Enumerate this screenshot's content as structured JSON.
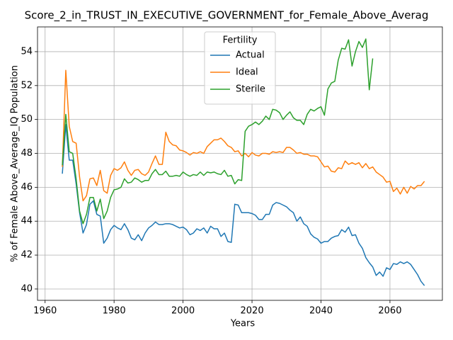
{
  "chart_data": {
    "type": "line",
    "title": "Score_2_in_TRUST_IN_EXECUTIVE_GOVERNMENT_for_Female_Above_Averag",
    "x_label": "Years",
    "y_label": "% of Female Above_Average_IQ Population",
    "legend_title": "Fertility",
    "legend_position": "upper center",
    "grid": true,
    "xlim": [
      1957.8,
      2075.2
    ],
    "ylim": [
      39.33,
      55.46
    ],
    "xticks": [
      1960,
      1980,
      2000,
      2020,
      2040,
      2060
    ],
    "yticks": [
      40,
      42,
      44,
      46,
      48,
      50,
      52,
      54
    ],
    "x": [
      1965,
      1966,
      1967,
      1968,
      1969,
      1970,
      1971,
      1972,
      1973,
      1974,
      1975,
      1976,
      1977,
      1978,
      1979,
      1980,
      1981,
      1982,
      1983,
      1984,
      1985,
      1986,
      1987,
      1988,
      1989,
      1990,
      1991,
      1992,
      1993,
      1994,
      1995,
      1996,
      1997,
      1998,
      1999,
      2000,
      2001,
      2002,
      2003,
      2004,
      2005,
      2006,
      2007,
      2008,
      2009,
      2010,
      2011,
      2012,
      2013,
      2014,
      2015,
      2016,
      2017,
      2018,
      2019,
      2020,
      2021,
      2022,
      2023,
      2024,
      2025,
      2026,
      2027,
      2028,
      2029,
      2030,
      2031,
      2032,
      2033,
      2034,
      2035,
      2036,
      2037,
      2038,
      2039,
      2040,
      2041,
      2042,
      2043,
      2044,
      2045,
      2046,
      2047,
      2048,
      2049,
      2050,
      2051,
      2052,
      2053,
      2054,
      2055,
      2056,
      2057,
      2058,
      2059,
      2060,
      2061,
      2062,
      2063,
      2064,
      2065,
      2066,
      2067,
      2068,
      2069,
      2070
    ],
    "series": [
      {
        "name": "Actual",
        "color": "#1f77b4",
        "values": [
          46.8,
          49.7,
          47.6,
          47.6,
          46.2,
          44.5,
          43.3,
          43.8,
          45.0,
          45.2,
          44.4,
          44.3,
          42.7,
          43.0,
          43.5,
          43.75,
          43.6,
          43.5,
          43.85,
          43.5,
          43.0,
          42.9,
          43.2,
          42.85,
          43.3,
          43.6,
          43.75,
          43.95,
          43.8,
          43.8,
          43.85,
          43.85,
          43.8,
          43.7,
          43.6,
          43.65,
          43.5,
          43.2,
          43.3,
          43.55,
          43.45,
          43.6,
          43.3,
          43.7,
          43.55,
          43.55,
          43.1,
          43.3,
          42.8,
          42.75,
          45.0,
          44.95,
          44.5,
          44.5,
          44.5,
          44.45,
          44.35,
          44.1,
          44.1,
          44.4,
          44.4,
          44.95,
          45.1,
          45.05,
          44.95,
          44.85,
          44.65,
          44.5,
          44.0,
          44.25,
          43.85,
          43.7,
          43.25,
          43.05,
          42.95,
          42.7,
          42.8,
          42.8,
          43.0,
          43.1,
          43.15,
          43.5,
          43.35,
          43.65,
          43.15,
          43.2,
          42.7,
          42.4,
          41.85,
          41.55,
          41.3,
          40.8,
          41.0,
          40.75,
          41.25,
          41.15,
          41.5,
          41.45,
          41.6,
          41.5,
          41.6,
          41.45,
          41.15,
          40.85,
          40.45,
          40.2
        ]
      },
      {
        "name": "Ideal",
        "color": "#ff7f0e",
        "values": [
          47.2,
          52.9,
          49.6,
          48.7,
          48.6,
          46.6,
          45.2,
          45.5,
          46.5,
          46.55,
          46.1,
          47.0,
          45.8,
          45.65,
          46.7,
          47.1,
          47.0,
          47.15,
          47.5,
          47.0,
          46.7,
          47.0,
          47.05,
          46.8,
          46.7,
          46.9,
          47.4,
          47.85,
          47.35,
          47.35,
          49.25,
          48.7,
          48.5,
          48.45,
          48.2,
          48.15,
          48.05,
          47.9,
          48.05,
          48.0,
          48.1,
          48.0,
          48.4,
          48.6,
          48.8,
          48.8,
          48.9,
          48.7,
          48.45,
          48.35,
          48.1,
          48.15,
          47.85,
          48.0,
          47.8,
          48.05,
          47.9,
          47.85,
          48.0,
          48.0,
          47.95,
          48.1,
          48.05,
          48.1,
          48.05,
          48.35,
          48.35,
          48.2,
          48.0,
          48.05,
          47.95,
          47.95,
          47.85,
          47.85,
          47.8,
          47.5,
          47.2,
          47.25,
          46.95,
          46.9,
          47.15,
          47.1,
          47.55,
          47.35,
          47.45,
          47.35,
          47.45,
          47.15,
          47.4,
          47.1,
          47.2,
          46.9,
          46.75,
          46.6,
          46.3,
          46.35,
          45.75,
          45.95,
          45.6,
          46.0,
          45.65,
          46.05,
          45.9,
          46.1,
          46.1,
          46.35
        ]
      },
      {
        "name": "Sterile",
        "color": "#2ca02c",
        "values": [
          47.3,
          50.3,
          48.1,
          48.0,
          46.5,
          44.6,
          43.85,
          44.4,
          45.4,
          45.4,
          44.6,
          45.3,
          44.15,
          44.6,
          45.4,
          45.85,
          45.9,
          46.0,
          46.5,
          46.25,
          46.3,
          46.55,
          46.45,
          46.3,
          46.4,
          46.4,
          46.8,
          47.05,
          46.75,
          46.75,
          46.95,
          46.65,
          46.65,
          46.7,
          46.65,
          46.9,
          46.75,
          46.65,
          46.75,
          46.7,
          46.9,
          46.7,
          46.9,
          46.85,
          46.9,
          46.8,
          46.75,
          47.0,
          46.65,
          46.7,
          46.2,
          46.45,
          46.4,
          49.3,
          49.6,
          49.7,
          49.85,
          49.7,
          49.9,
          50.2,
          50.0,
          50.6,
          50.55,
          50.4,
          50.0,
          50.25,
          50.45,
          50.1,
          49.95,
          49.95,
          49.7,
          50.3,
          50.6,
          50.5,
          50.65,
          50.75,
          50.25,
          51.8,
          52.15,
          52.25,
          53.5,
          54.2,
          54.15,
          54.7,
          53.15,
          54.0,
          54.6,
          54.25,
          54.75,
          51.75,
          53.6,
          null,
          null,
          null,
          null,
          null,
          null,
          null,
          null,
          null,
          null,
          null,
          null,
          null,
          null,
          null
        ]
      }
    ]
  }
}
